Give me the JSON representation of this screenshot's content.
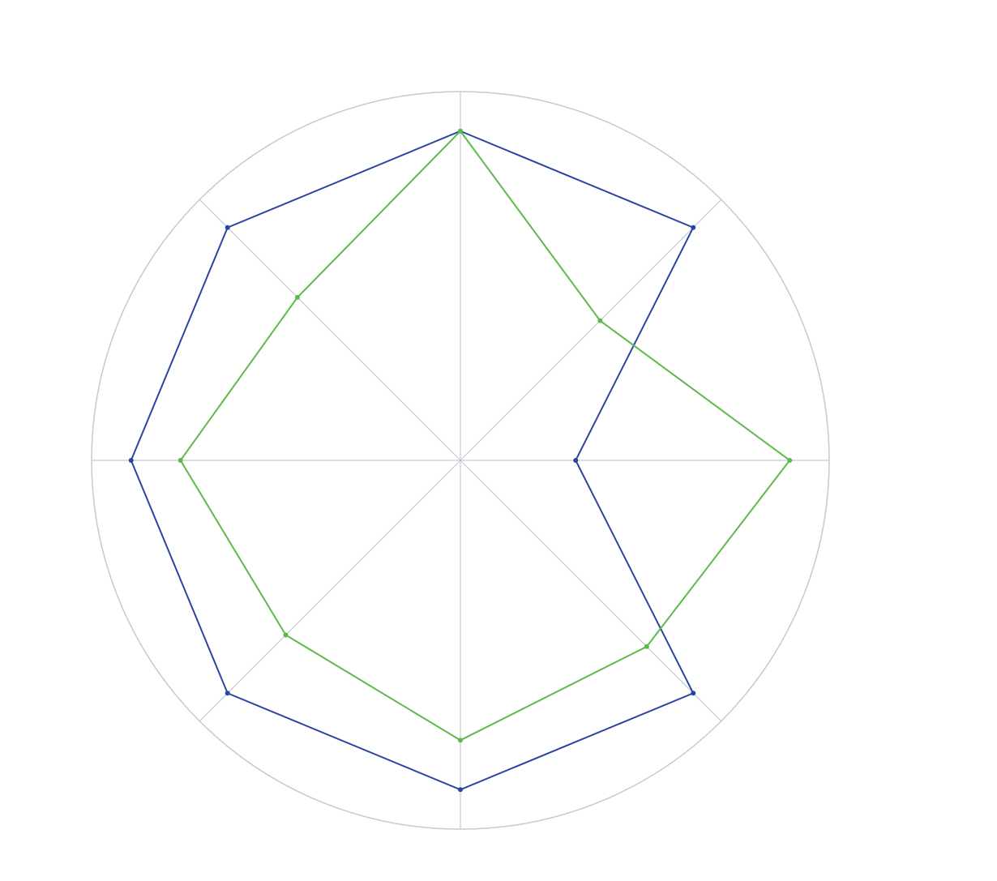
{
  "chart_data": {
    "type": "radar",
    "categories": [
      null,
      null,
      null,
      null,
      null,
      null,
      null,
      null
    ],
    "rlim": [
      0,
      11.2
    ],
    "series": [
      {
        "color": "#2b45a0",
        "values": [
          10,
          10,
          3.5,
          10,
          10,
          10,
          10,
          10
        ]
      },
      {
        "color": "#5cba4a",
        "values": [
          10,
          6,
          10,
          8,
          8.5,
          7.5,
          8.5,
          7
        ]
      }
    ]
  }
}
